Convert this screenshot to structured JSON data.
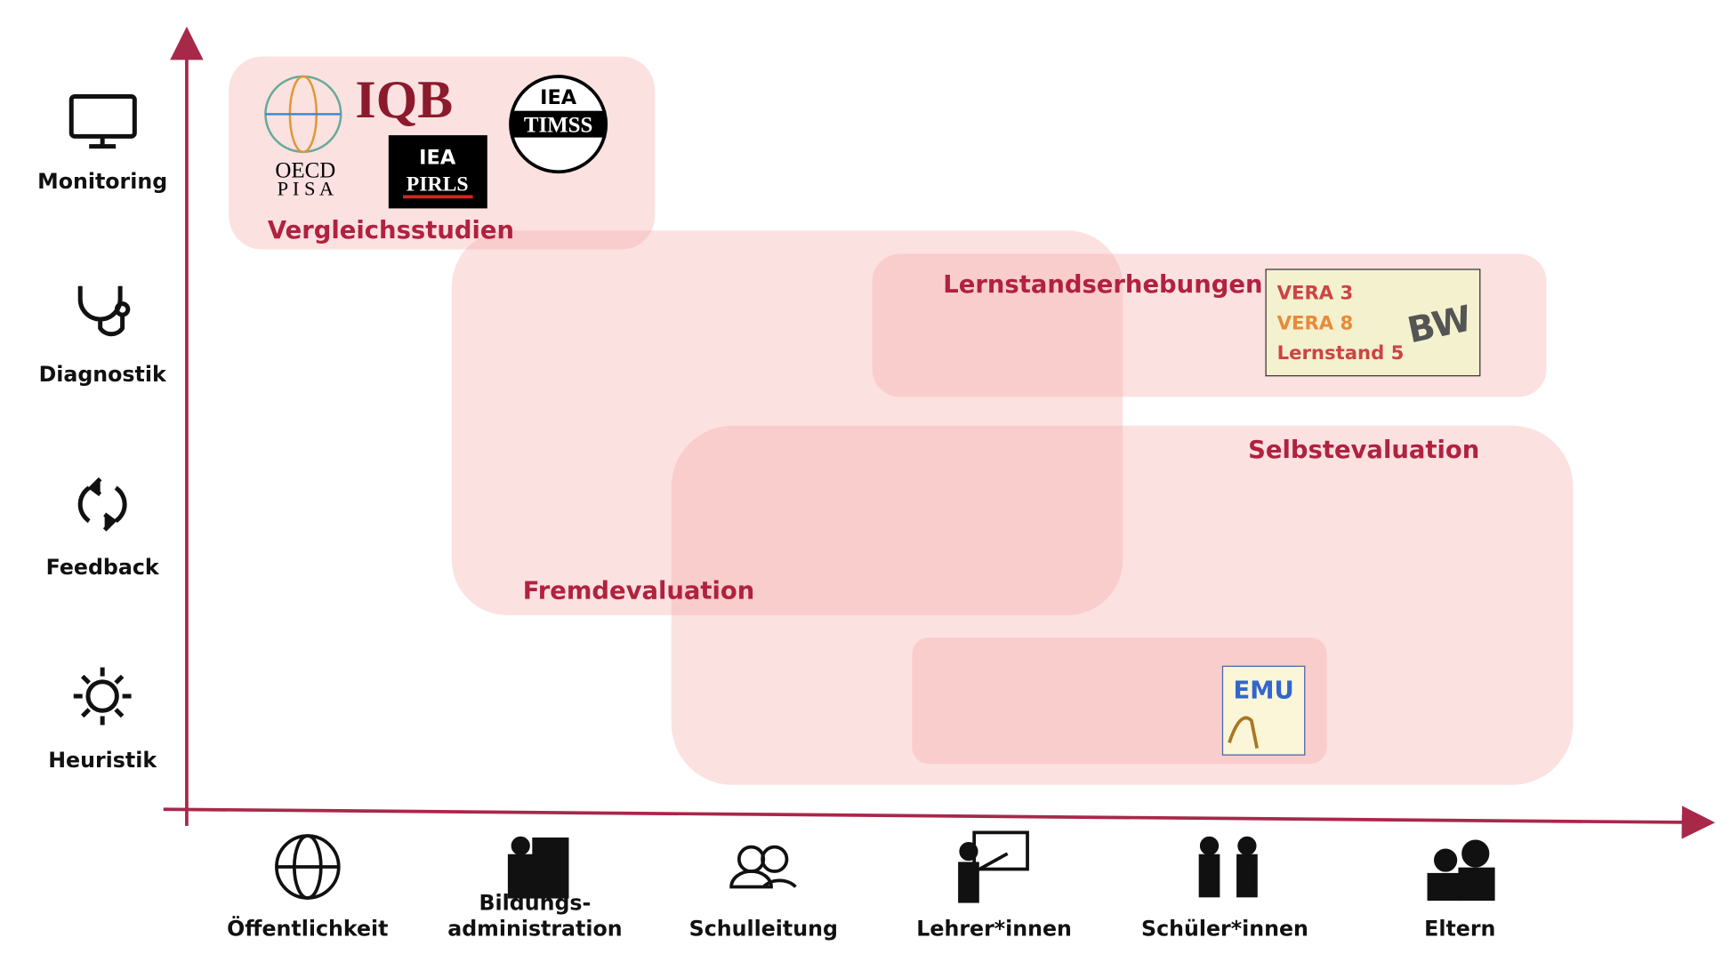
{
  "y_axis": [
    "Monitoring",
    "Diagnostik",
    "Feedback",
    "Heuristik"
  ],
  "x_axis": [
    {
      "lines": [
        "Öffentlichkeit"
      ]
    },
    {
      "lines": [
        "Bildungs-",
        "administration"
      ]
    },
    {
      "lines": [
        "Schulleitung"
      ]
    },
    {
      "lines": [
        "Lehrer*innen"
      ]
    },
    {
      "lines": [
        "Schüler*innen"
      ]
    },
    {
      "lines": [
        "Eltern"
      ]
    }
  ],
  "regions": {
    "vergleich": "Vergleichsstudien",
    "lernstand": "Lernstandserhebungen",
    "selbst": "Selbstevaluation",
    "fremd": "Fremdevaluation"
  },
  "logos": {
    "oecd": "OECD",
    "pisa": "P I S A",
    "iqb": "IQB",
    "iea_timss": "IEA",
    "timss": "TIMSS",
    "iea_pirls": "IEA",
    "pirls": "PIRLS",
    "vera3": "VERA 3",
    "vera8": "VERA 8",
    "lernstand5": "Lernstand 5",
    "bw": "BW",
    "emu": "EMU"
  }
}
